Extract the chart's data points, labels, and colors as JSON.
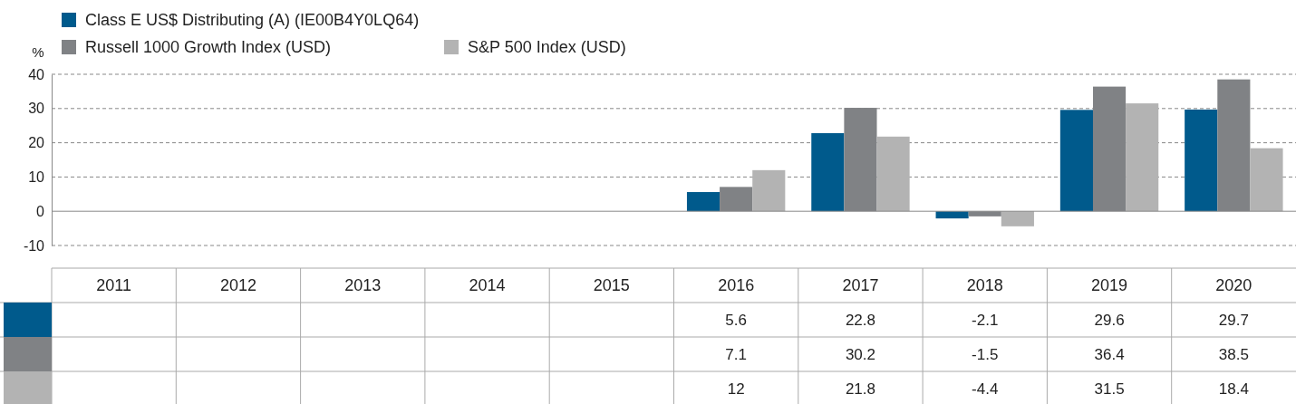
{
  "chart_data": {
    "type": "bar",
    "ylabel": "%",
    "categories": [
      "2011",
      "2012",
      "2013",
      "2014",
      "2015",
      "2016",
      "2017",
      "2018",
      "2019",
      "2020"
    ],
    "series": [
      {
        "name": "Class E US$ Distributing (A) (IE00B4Y0LQ64)",
        "color": "#005a8c",
        "values": [
          null,
          null,
          null,
          null,
          null,
          5.6,
          22.8,
          -2.1,
          29.6,
          29.7
        ]
      },
      {
        "name": "Russell 1000 Growth Index (USD)",
        "color": "#808285",
        "values": [
          null,
          null,
          null,
          null,
          null,
          7.1,
          30.2,
          -1.5,
          36.4,
          38.5
        ]
      },
      {
        "name": "S&P 500 Index (USD)",
        "color": "#b3b3b3",
        "values": [
          null,
          null,
          null,
          null,
          null,
          12,
          21.8,
          -4.4,
          31.5,
          18.4
        ]
      }
    ],
    "ylim": [
      -10,
      40
    ],
    "yticks": [
      -10,
      0,
      10,
      20,
      30,
      40
    ],
    "grid": "y",
    "legend": "top left",
    "data_labels": true
  }
}
